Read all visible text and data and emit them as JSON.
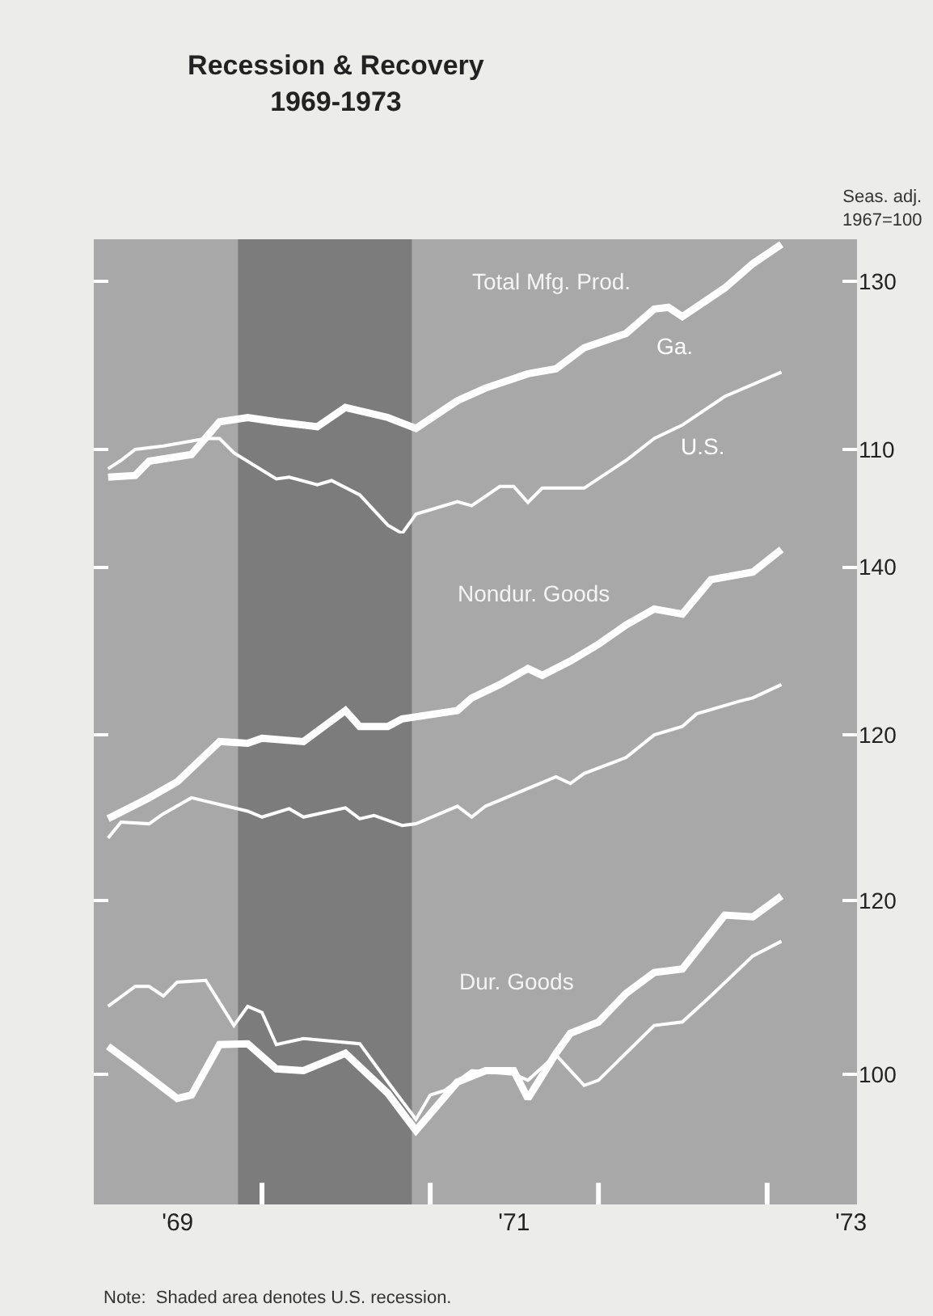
{
  "chart_data": [
    {
      "type": "line",
      "title": "Recession & Recovery\n1969-1973",
      "subtitle": "Total Mfg. Prod.",
      "ylabel": "Seas. adj.\n1967=100",
      "xlim": [
        "1969-01-01",
        "1973-07-15"
      ],
      "ylim": [
        100,
        135
      ],
      "yticks": [
        110,
        130
      ],
      "tick_labels": "y",
      "grid": false,
      "bands": [
        {
          "axis": "x",
          "from": "1969-11-10",
          "to": "1970-11-22",
          "color": "#7c7c7c"
        }
      ],
      "series": [
        {
          "name": "Ga.",
          "color": "#ffffff",
          "x": [
            "1969-02",
            "1969-04",
            "1969-05",
            "1969-08",
            "1969-10",
            "1969-12",
            "1970-02",
            "1970-05",
            "1970-07",
            "1970-10",
            "1970-12",
            "1971-03",
            "1971-05",
            "1971-08",
            "1971-10",
            "1971-12",
            "1972-03",
            "1972-05",
            "1972-06",
            "1972-07",
            "1972-10",
            "1972-12",
            "1973-02"
          ],
          "values": [
            106.7,
            106.9,
            108.6,
            109.4,
            113.3,
            113.8,
            113.3,
            112.7,
            115.0,
            113.8,
            112.5,
            115.8,
            117.3,
            119.0,
            119.6,
            122.1,
            123.8,
            126.7,
            126.9,
            125.8,
            129.2,
            132.1,
            134.4
          ]
        },
        {
          "name": "U.S.",
          "color": "#ffffff",
          "x": [
            "1969-02",
            "1969-03",
            "1969-04",
            "1969-06",
            "1969-09",
            "1969-10",
            "1969-11",
            "1970-02",
            "1970-03",
            "1970-05",
            "1970-06",
            "1970-08",
            "1970-10",
            "1970-11",
            "1970-12",
            "1971-03",
            "1971-04",
            "1971-06",
            "1971-07",
            "1971-08",
            "1971-09",
            "1971-12",
            "1972-03",
            "1972-05",
            "1972-07",
            "1972-10",
            "1973-02"
          ],
          "values": [
            107.7,
            108.7,
            110.0,
            110.4,
            111.3,
            111.3,
            109.6,
            106.5,
            106.7,
            105.8,
            106.3,
            104.6,
            101.0,
            100.0,
            102.3,
            103.8,
            103.3,
            105.6,
            105.6,
            103.7,
            105.4,
            105.4,
            108.7,
            111.3,
            112.9,
            116.3,
            119.2
          ]
        }
      ]
    },
    {
      "type": "line",
      "title": "Nondur. Goods",
      "xlim": [
        "1969-01-01",
        "1973-07-15"
      ],
      "ylim": [
        107,
        144
      ],
      "yticks": [
        120,
        140
      ],
      "tick_labels": "y",
      "grid": false,
      "bands": [
        {
          "axis": "x",
          "from": "1969-11-10",
          "to": "1970-11-22",
          "color": "#7c7c7c"
        }
      ],
      "series": [
        {
          "color": "#ffffff",
          "x": [
            "1969-02",
            "1969-05",
            "1969-07",
            "1969-10",
            "1969-12",
            "1970-01",
            "1970-04",
            "1970-07",
            "1970-08",
            "1970-10",
            "1970-11",
            "1971-03",
            "1971-04",
            "1971-06",
            "1971-08",
            "1971-09",
            "1971-11",
            "1972-01",
            "1972-03",
            "1972-05",
            "1972-07",
            "1972-09",
            "1972-12",
            "1973-02"
          ],
          "values": [
            110.0,
            112.5,
            114.4,
            119.2,
            119.0,
            119.6,
            119.2,
            122.9,
            121.0,
            121.0,
            121.9,
            122.9,
            124.4,
            126.0,
            127.9,
            127.1,
            128.8,
            130.8,
            133.1,
            135.0,
            134.4,
            138.5,
            139.4,
            142.1
          ]
        },
        {
          "color": "#ffffff",
          "x": [
            "1969-02",
            "1969-03",
            "1969-05",
            "1969-06",
            "1969-08",
            "1969-10",
            "1969-12",
            "1970-01",
            "1970-03",
            "1970-04",
            "1970-07",
            "1970-08",
            "1970-09",
            "1970-11",
            "1970-12",
            "1971-03",
            "1971-04",
            "1971-05",
            "1971-10",
            "1971-11",
            "1971-12",
            "1972-03",
            "1972-05",
            "1972-07",
            "1972-08",
            "1972-11",
            "1972-12",
            "1973-02"
          ],
          "values": [
            107.7,
            109.6,
            109.4,
            110.6,
            112.5,
            111.7,
            110.9,
            110.2,
            111.2,
            110.2,
            111.3,
            110.0,
            110.4,
            109.2,
            109.4,
            111.5,
            110.2,
            111.5,
            115.0,
            114.2,
            115.4,
            117.3,
            120.0,
            121.0,
            122.5,
            124.0,
            124.4,
            126.0
          ]
        }
      ]
    },
    {
      "type": "line",
      "title": "Dur. Goods",
      "xlim": [
        "1969-01-01",
        "1973-07-15"
      ],
      "ylim": [
        85,
        126.5
      ],
      "yticks": [
        100,
        120
      ],
      "xticks": [
        {
          "value": "1969-07-02",
          "label": "'69"
        },
        {
          "value": "1970-01-01",
          "label": null
        },
        {
          "value": "1971-01-01",
          "label": null
        },
        {
          "value": "1971-07-02",
          "label": "'71"
        },
        {
          "value": "1972-01-01",
          "label": null
        },
        {
          "value": "1973-01-01",
          "label": null
        },
        {
          "value": "1973-07-02",
          "label": "'73"
        }
      ],
      "grid": false,
      "annotations": [
        "Note:  Shaded area denotes U.S. recession."
      ],
      "bands": [
        {
          "axis": "x",
          "from": "1969-11-10",
          "to": "1970-11-22",
          "color": "#7c7c7c"
        }
      ],
      "series": [
        {
          "color": "#ffffff",
          "x": [
            "1969-02",
            "1969-04",
            "1969-07",
            "1969-08",
            "1969-10",
            "1969-12",
            "1970-02",
            "1970-04",
            "1970-07",
            "1970-10",
            "1970-12",
            "1971-03",
            "1971-05",
            "1971-07",
            "1971-08",
            "1971-10",
            "1971-11",
            "1972-01",
            "1972-03",
            "1972-05",
            "1972-07",
            "1972-10",
            "1972-12",
            "1973-02"
          ],
          "values": [
            103.2,
            100.9,
            97.2,
            97.6,
            103.4,
            103.5,
            100.6,
            100.4,
            102.4,
            97.8,
            93.5,
            99.1,
            100.4,
            100.4,
            97.2,
            102.4,
            104.7,
            106.0,
            109.3,
            111.7,
            112.1,
            118.3,
            118.1,
            120.5
          ]
        },
        {
          "color": "#ffffff",
          "x": [
            "1969-02",
            "1969-04",
            "1969-05",
            "1969-06",
            "1969-07",
            "1969-09",
            "1969-11",
            "1969-12",
            "1970-01",
            "1970-02",
            "1970-04",
            "1970-08",
            "1970-10",
            "1970-12",
            "1971-01",
            "1971-02",
            "1971-04",
            "1971-07",
            "1971-08",
            "1971-10",
            "1971-12",
            "1972-01",
            "1972-05",
            "1972-07",
            "1972-09",
            "1972-12",
            "1973-02"
          ],
          "values": [
            107.8,
            110.1,
            110.1,
            109.0,
            110.6,
            110.8,
            105.6,
            107.8,
            107.1,
            103.4,
            104.1,
            103.5,
            99.1,
            94.8,
            97.6,
            98.1,
            100.4,
            100.0,
            99.3,
            102.2,
            98.7,
            99.3,
            105.6,
            106.0,
            109.0,
            113.6,
            115.3
          ]
        }
      ]
    }
  ]
}
